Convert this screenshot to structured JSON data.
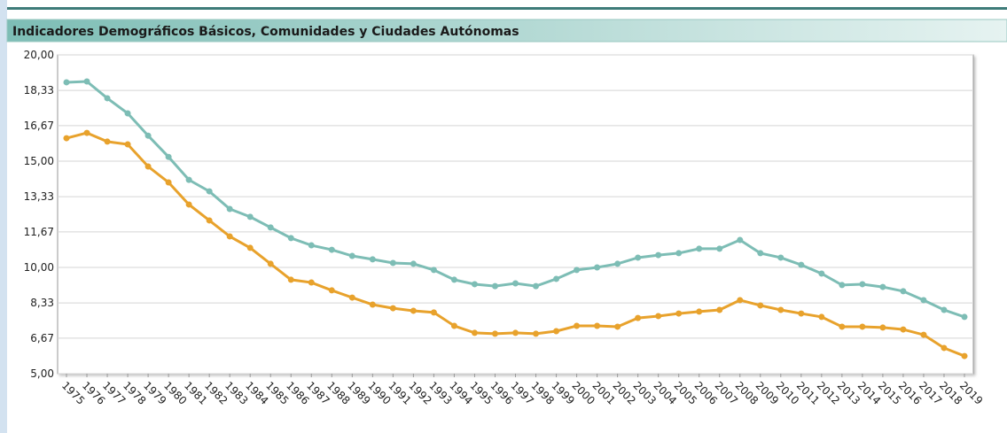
{
  "chart_data": {
    "type": "line",
    "title": "Indicadores Demográficos Básicos, Comunidades y Ciudades Autónomas",
    "categories": [
      "1975",
      "1976",
      "1977",
      "1978",
      "1979",
      "1980",
      "1981",
      "1982",
      "1983",
      "1984",
      "1985",
      "1986",
      "1987",
      "1988",
      "1989",
      "1990",
      "1991",
      "1992",
      "1993",
      "1994",
      "1995",
      "1996",
      "1997",
      "1998",
      "1999",
      "2000",
      "2001",
      "2002",
      "2003",
      "2004",
      "2005",
      "2006",
      "2007",
      "2008",
      "2009",
      "2010",
      "2011",
      "2012",
      "2013",
      "2014",
      "2015",
      "2016",
      "2017",
      "2018",
      "2019"
    ],
    "series": [
      {
        "color": "#7dbdb5",
        "values": [
          18.71,
          18.75,
          17.96,
          17.25,
          16.2,
          15.2,
          14.12,
          13.58,
          12.75,
          12.38,
          11.88,
          11.38,
          11.04,
          10.83,
          10.54,
          10.38,
          10.21,
          10.17,
          9.88,
          9.42,
          9.21,
          9.12,
          9.25,
          9.12,
          9.46,
          9.88,
          10.0,
          10.17,
          10.46,
          10.58,
          10.67,
          10.88,
          10.88,
          11.29,
          10.67,
          10.46,
          10.12,
          9.71,
          9.17,
          9.21,
          9.08,
          8.88,
          8.46,
          8.0,
          7.67
        ]
      },
      {
        "color": "#e8a22c",
        "values": [
          16.08,
          16.33,
          15.92,
          15.79,
          14.75,
          14.0,
          12.96,
          12.21,
          11.46,
          10.92,
          10.17,
          9.42,
          9.29,
          8.92,
          8.58,
          8.25,
          8.08,
          7.96,
          7.88,
          7.25,
          6.92,
          6.88,
          6.92,
          6.88,
          7.0,
          7.25,
          7.25,
          7.21,
          7.62,
          7.71,
          7.83,
          7.92,
          8.0,
          8.46,
          8.21,
          8.0,
          7.83,
          7.67,
          7.21,
          7.21,
          7.17,
          7.08,
          6.83,
          6.21,
          5.83
        ]
      }
    ],
    "ylim": [
      5,
      20
    ],
    "yticks": [
      {
        "value": 5,
        "label": "5,00"
      },
      {
        "value": 6.67,
        "label": "6,67"
      },
      {
        "value": 8.33,
        "label": "8,33"
      },
      {
        "value": 10,
        "label": "10,00"
      },
      {
        "value": 11.67,
        "label": "11,67"
      },
      {
        "value": 13.33,
        "label": "13,33"
      },
      {
        "value": 15,
        "label": "15,00"
      },
      {
        "value": 16.67,
        "label": "16,67"
      },
      {
        "value": 18.33,
        "label": "18,33"
      },
      {
        "value": 20,
        "label": "20,00"
      }
    ],
    "grid": true
  }
}
